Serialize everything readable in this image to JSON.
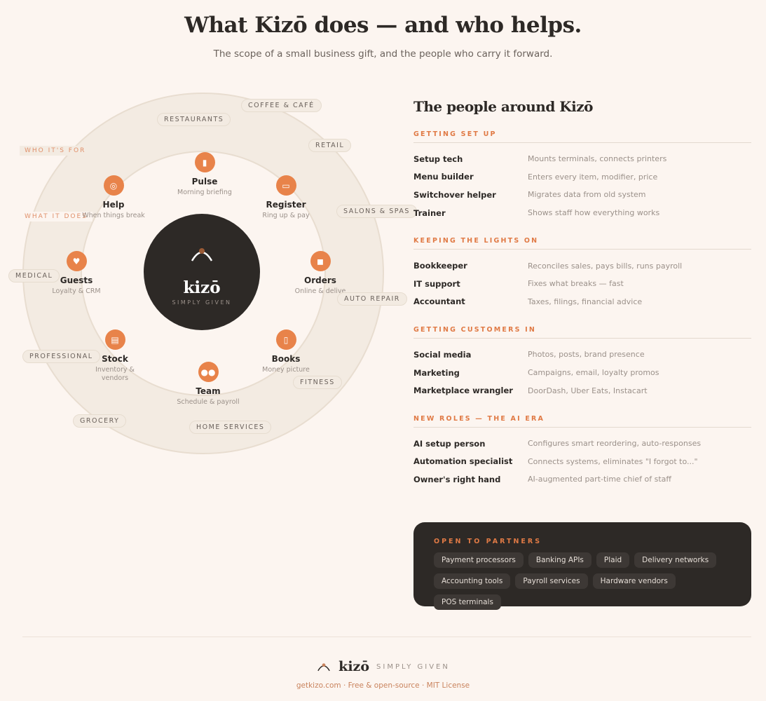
{
  "header": {
    "title": "What Kizō does — and who helps.",
    "subtitle": "The scope of a small business gift, and the people who carry it forward."
  },
  "wheel": {
    "center": {
      "logo": "kizō",
      "tagline": "SIMPLY GIVEN"
    },
    "labels": {
      "who": "WHO IT'S FOR",
      "what": "WHAT IT DOES"
    },
    "modules": [
      {
        "name": "Pulse",
        "desc": "Morning briefing",
        "icon": "bar-chart-icon"
      },
      {
        "name": "Register",
        "desc": "Ring up & pay",
        "icon": "credit-card-icon"
      },
      {
        "name": "Orders",
        "desc": "Online & delive",
        "icon": "package-icon"
      },
      {
        "name": "Books",
        "desc": "Money picture",
        "icon": "notebook-icon"
      },
      {
        "name": "Team",
        "desc": "Schedule & payroll",
        "icon": "people-icon"
      },
      {
        "name": "Stock",
        "desc": "Inventory & vendors",
        "icon": "clipboard-icon"
      },
      {
        "name": "Guests",
        "desc": "Loyalty & CRM",
        "icon": "heart-icon"
      },
      {
        "name": "Help",
        "desc": "When things break",
        "icon": "lifebuoy-icon"
      }
    ],
    "industries": [
      "COFFEE & CAFÉ",
      "RESTAURANTS",
      "RETAIL",
      "SALONS & SPAS",
      "AUTO REPAIR",
      "FITNESS",
      "HOME SERVICES",
      "GROCERY",
      "PROFESSIONAL",
      "MEDICAL"
    ]
  },
  "people": {
    "title": "The people around Kizō",
    "sections": [
      {
        "heading": "GETTING SET UP",
        "rows": [
          [
            "Setup tech",
            "Mounts terminals, connects printers"
          ],
          [
            "Menu builder",
            "Enters every item, modifier, price"
          ],
          [
            "Switchover helper",
            "Migrates data from old system"
          ],
          [
            "Trainer",
            "Shows staff how everything works"
          ]
        ]
      },
      {
        "heading": "KEEPING THE LIGHTS ON",
        "rows": [
          [
            "Bookkeeper",
            "Reconciles sales, pays bills, runs payroll"
          ],
          [
            "IT support",
            "Fixes what breaks — fast"
          ],
          [
            "Accountant",
            "Taxes, filings, financial advice"
          ]
        ]
      },
      {
        "heading": "GETTING CUSTOMERS IN",
        "rows": [
          [
            "Social media",
            "Photos, posts, brand presence"
          ],
          [
            "Marketing",
            "Campaigns, email, loyalty promos"
          ],
          [
            "Marketplace wrangler",
            "DoorDash, Uber Eats, Instacart"
          ]
        ]
      },
      {
        "heading": "NEW ROLES — THE AI ERA",
        "rows": [
          [
            "AI setup person",
            "Configures smart reordering, auto-responses"
          ],
          [
            "Automation specialist",
            "Connects systems, eliminates \"I forgot to...\""
          ],
          [
            "Owner's right hand",
            "AI-augmented part-time chief of staff"
          ]
        ]
      }
    ]
  },
  "partners": {
    "heading": "OPEN TO PARTNERS",
    "chips": [
      "Payment processors",
      "Banking APIs",
      "Plaid",
      "Delivery networks",
      "Accounting tools",
      "Payroll services",
      "Hardware vendors",
      "POS terminals"
    ]
  },
  "footer": {
    "logo": "kizō",
    "tagline": "SIMPLY GIVEN",
    "links": "getkizo.com · Free & open-source · MIT License"
  },
  "colors": {
    "accent": "#e8834a",
    "dark": "#2d2926",
    "background": "#fcf5f0"
  }
}
